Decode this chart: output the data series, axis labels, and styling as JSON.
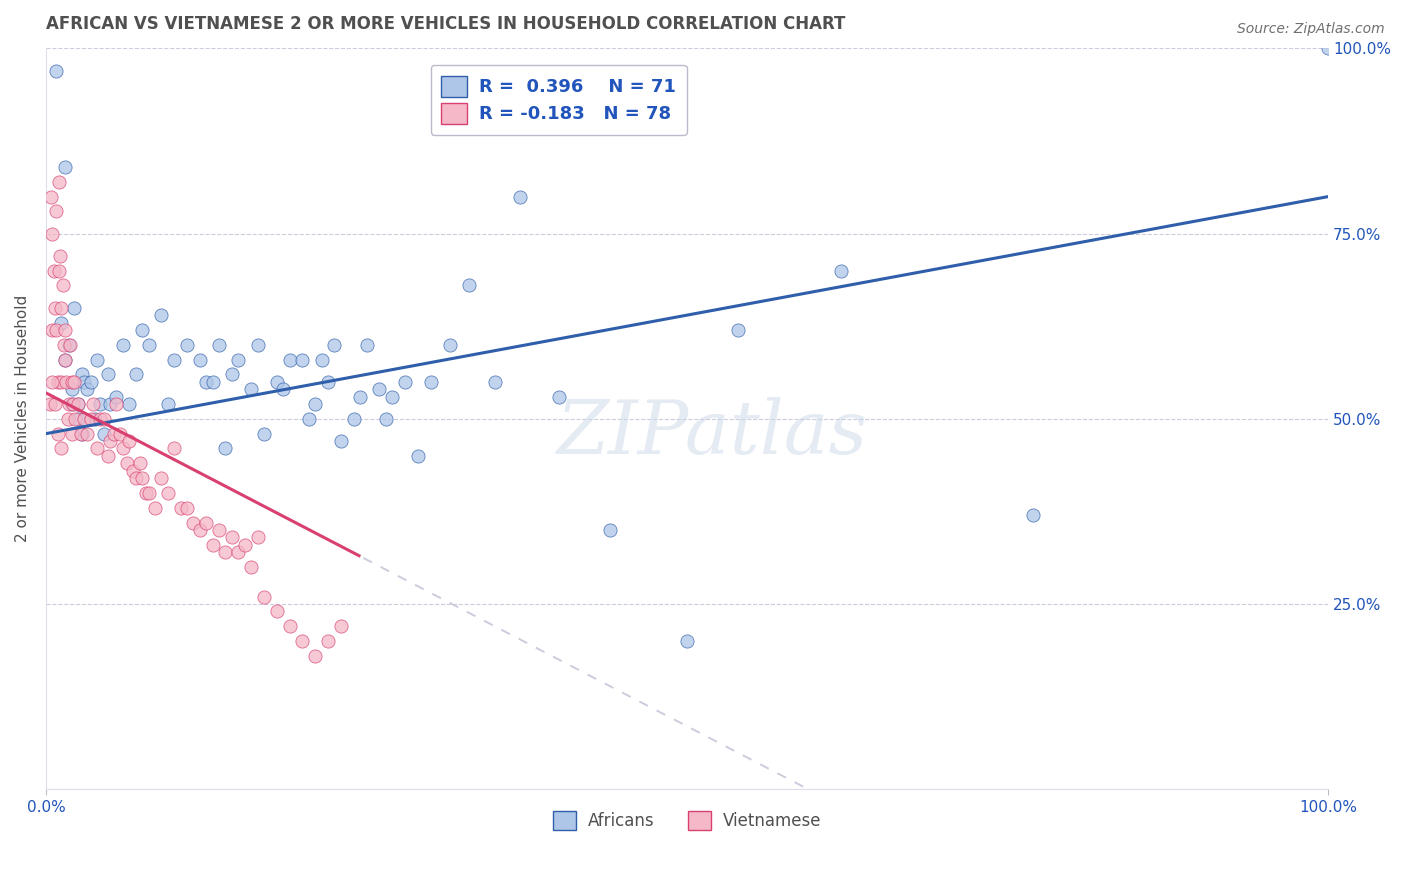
{
  "title": "AFRICAN VS VIETNAMESE 2 OR MORE VEHICLES IN HOUSEHOLD CORRELATION CHART",
  "source": "Source: ZipAtlas.com",
  "ylabel": "2 or more Vehicles in Household",
  "ytick_labels": [
    "",
    "25.0%",
    "50.0%",
    "75.0%",
    "100.0%"
  ],
  "ytick_values": [
    0.0,
    0.25,
    0.5,
    0.75,
    1.0
  ],
  "african_color": "#aec6e8",
  "vietnamese_color": "#f4b8c8",
  "african_line_color": "#2f5faa",
  "vietnamese_line_color": "#d94070",
  "vietnamese_dash_color": "#ccccdd",
  "title_color": "#505050",
  "source_color": "#707070",
  "legend_text_color": "#2255bb",
  "grid_color": "#ccccdd",
  "background_color": "#ffffff",
  "african_x": [
    0.008,
    0.012,
    0.015,
    0.015,
    0.018,
    0.02,
    0.02,
    0.022,
    0.025,
    0.025,
    0.028,
    0.028,
    0.03,
    0.032,
    0.035,
    0.038,
    0.04,
    0.042,
    0.045,
    0.048,
    0.05,
    0.055,
    0.06,
    0.065,
    0.07,
    0.075,
    0.08,
    0.09,
    0.095,
    0.1,
    0.11,
    0.12,
    0.125,
    0.13,
    0.135,
    0.14,
    0.145,
    0.15,
    0.16,
    0.165,
    0.17,
    0.18,
    0.185,
    0.19,
    0.2,
    0.205,
    0.21,
    0.215,
    0.22,
    0.225,
    0.23,
    0.24,
    0.245,
    0.25,
    0.26,
    0.265,
    0.27,
    0.28,
    0.29,
    0.3,
    0.315,
    0.33,
    0.35,
    0.37,
    0.4,
    0.44,
    0.5,
    0.54,
    0.62,
    0.77,
    1.0
  ],
  "african_y": [
    0.97,
    0.63,
    0.58,
    0.84,
    0.6,
    0.52,
    0.54,
    0.65,
    0.52,
    0.5,
    0.48,
    0.56,
    0.55,
    0.54,
    0.55,
    0.5,
    0.58,
    0.52,
    0.48,
    0.56,
    0.52,
    0.53,
    0.6,
    0.52,
    0.56,
    0.62,
    0.6,
    0.64,
    0.52,
    0.58,
    0.6,
    0.58,
    0.55,
    0.55,
    0.6,
    0.46,
    0.56,
    0.58,
    0.54,
    0.6,
    0.48,
    0.55,
    0.54,
    0.58,
    0.58,
    0.5,
    0.52,
    0.58,
    0.55,
    0.6,
    0.47,
    0.5,
    0.53,
    0.6,
    0.54,
    0.5,
    0.53,
    0.55,
    0.45,
    0.55,
    0.6,
    0.68,
    0.55,
    0.8,
    0.53,
    0.35,
    0.2,
    0.62,
    0.7,
    0.37,
    1.0
  ],
  "vietnamese_x": [
    0.003,
    0.004,
    0.005,
    0.005,
    0.006,
    0.007,
    0.008,
    0.008,
    0.009,
    0.01,
    0.01,
    0.011,
    0.012,
    0.012,
    0.013,
    0.014,
    0.015,
    0.015,
    0.016,
    0.017,
    0.018,
    0.019,
    0.02,
    0.02,
    0.021,
    0.022,
    0.023,
    0.025,
    0.027,
    0.03,
    0.032,
    0.035,
    0.037,
    0.04,
    0.042,
    0.045,
    0.048,
    0.05,
    0.053,
    0.055,
    0.058,
    0.06,
    0.063,
    0.065,
    0.068,
    0.07,
    0.073,
    0.075,
    0.078,
    0.08,
    0.085,
    0.09,
    0.095,
    0.1,
    0.105,
    0.11,
    0.115,
    0.12,
    0.125,
    0.13,
    0.135,
    0.14,
    0.145,
    0.15,
    0.155,
    0.16,
    0.165,
    0.17,
    0.18,
    0.19,
    0.2,
    0.21,
    0.22,
    0.23,
    0.005,
    0.007,
    0.009,
    0.012
  ],
  "vietnamese_y": [
    0.52,
    0.8,
    0.75,
    0.62,
    0.7,
    0.65,
    0.78,
    0.62,
    0.55,
    0.82,
    0.7,
    0.72,
    0.65,
    0.55,
    0.68,
    0.6,
    0.62,
    0.58,
    0.55,
    0.5,
    0.52,
    0.6,
    0.48,
    0.55,
    0.52,
    0.55,
    0.5,
    0.52,
    0.48,
    0.5,
    0.48,
    0.5,
    0.52,
    0.46,
    0.5,
    0.5,
    0.45,
    0.47,
    0.48,
    0.52,
    0.48,
    0.46,
    0.44,
    0.47,
    0.43,
    0.42,
    0.44,
    0.42,
    0.4,
    0.4,
    0.38,
    0.42,
    0.4,
    0.46,
    0.38,
    0.38,
    0.36,
    0.35,
    0.36,
    0.33,
    0.35,
    0.32,
    0.34,
    0.32,
    0.33,
    0.3,
    0.34,
    0.26,
    0.24,
    0.22,
    0.2,
    0.18,
    0.2,
    0.22,
    0.55,
    0.52,
    0.48,
    0.46
  ]
}
